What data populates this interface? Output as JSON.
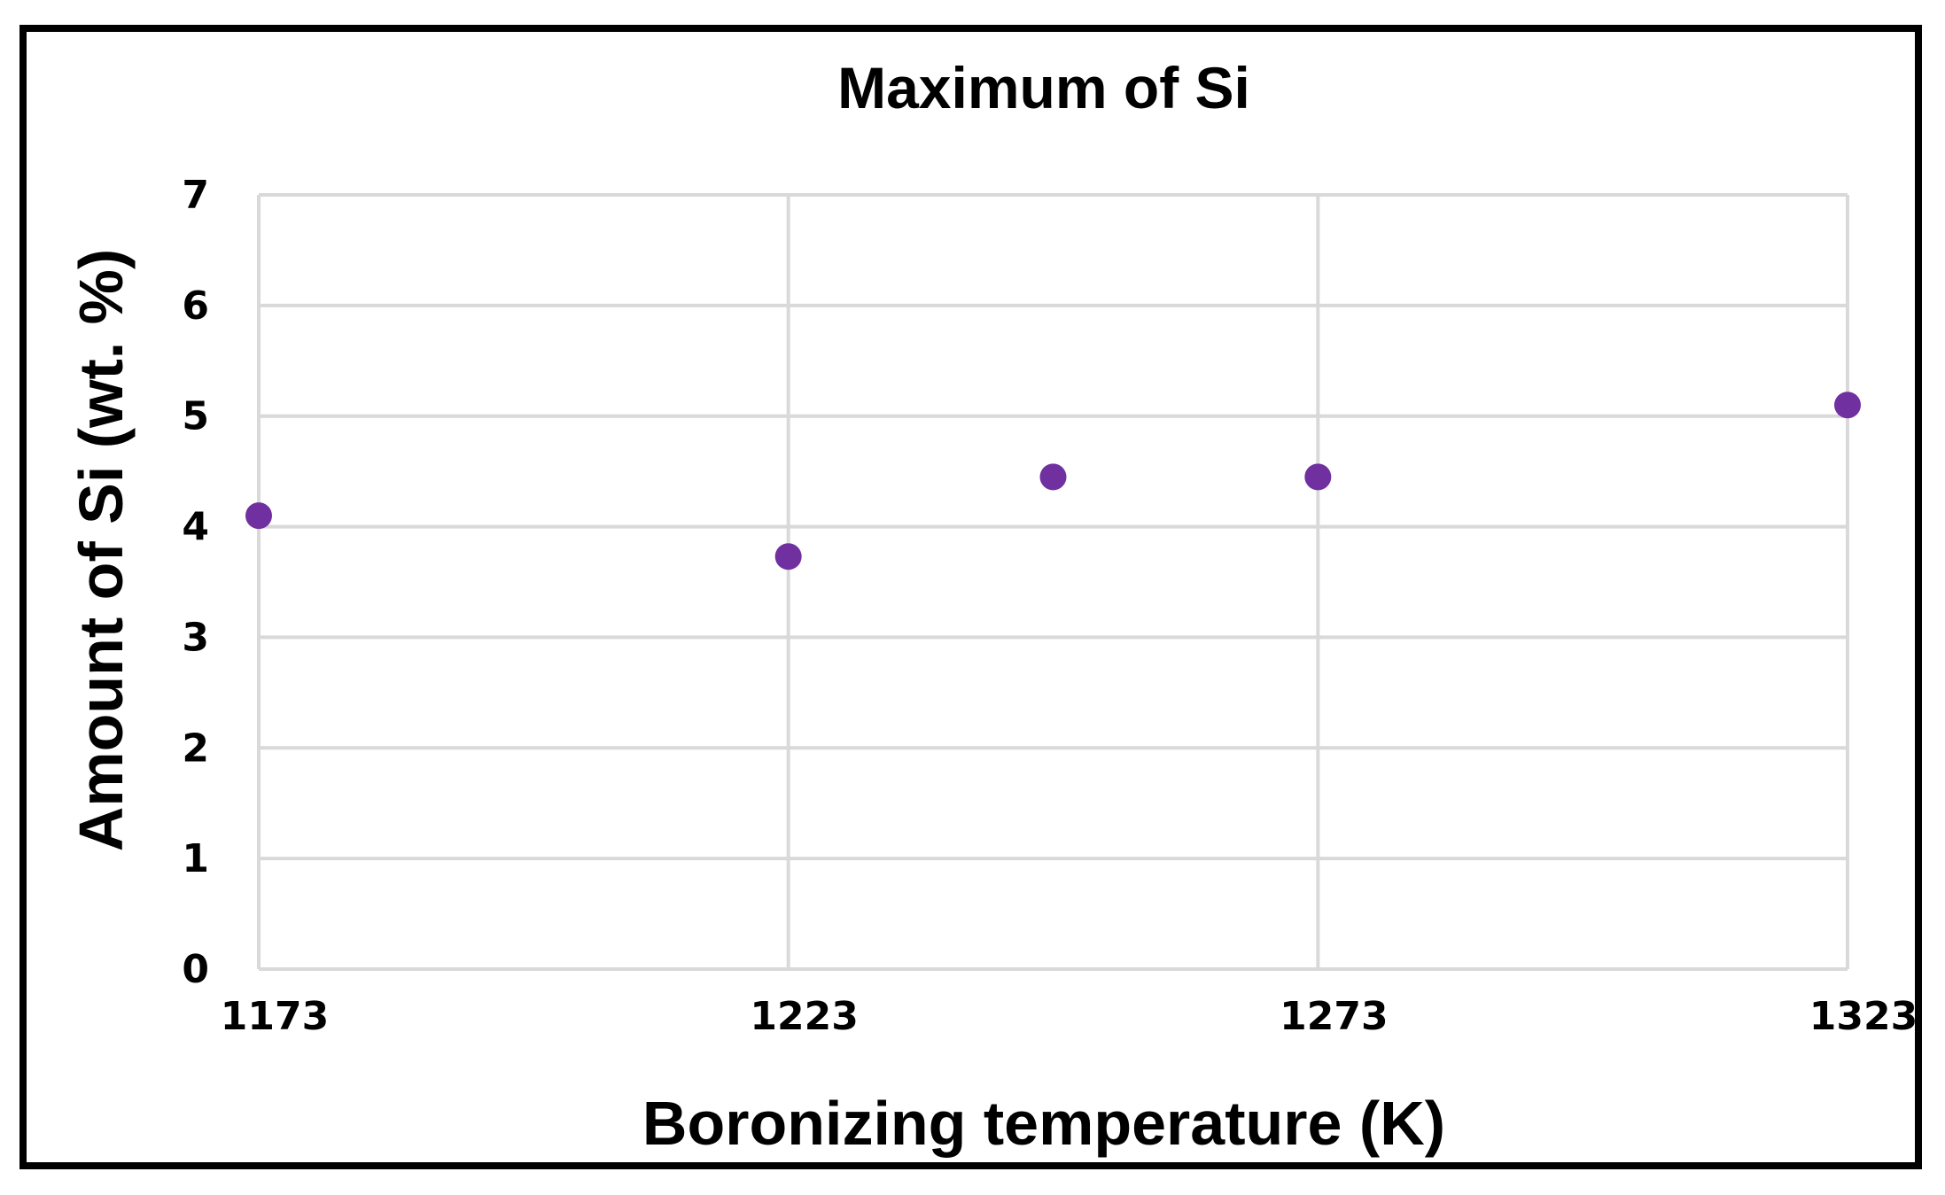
{
  "chart_data": {
    "type": "scatter",
    "title": "Maximum of Si",
    "xlabel": "Boronizing temperature (K)",
    "ylabel": "Amount of Si (wt. %)",
    "xlim": [
      1173,
      1323
    ],
    "ylim": [
      0,
      7
    ],
    "x_ticks": [
      1173,
      1223,
      1273,
      1323
    ],
    "y_ticks": [
      0,
      1,
      2,
      3,
      4,
      5,
      6,
      7
    ],
    "grid": true,
    "legend": "none",
    "marker_color": "#7030a0",
    "grid_color": "#d9d9d9",
    "points": [
      {
        "x": 1173,
        "y": 4.1
      },
      {
        "x": 1223,
        "y": 3.73
      },
      {
        "x": 1248,
        "y": 4.45
      },
      {
        "x": 1273,
        "y": 4.45
      },
      {
        "x": 1323,
        "y": 5.1
      }
    ]
  }
}
